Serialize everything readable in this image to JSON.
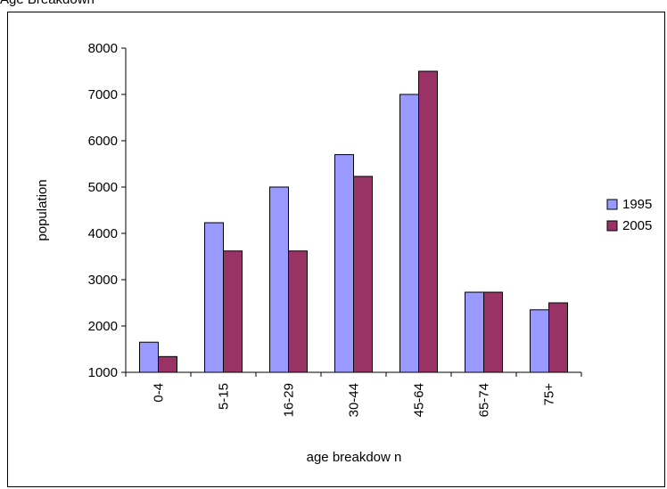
{
  "page_title": "Age Breakdown",
  "chart_data": {
    "type": "bar",
    "title": "",
    "xlabel": "age breakdow n",
    "ylabel": "population",
    "ylim": [
      1000,
      8000
    ],
    "yticks": [
      "1000",
      "2000",
      "3000",
      "4000",
      "5000",
      "6000",
      "7000",
      "8000"
    ],
    "categories": [
      "0-4",
      "5-15",
      "16-29",
      "30-44",
      "45-64",
      "65-74",
      "75+"
    ],
    "series": [
      {
        "name": "1995",
        "color": "#9999ff",
        "values": [
          1650,
          4230,
          5000,
          5700,
          7000,
          2730,
          2350
        ]
      },
      {
        "name": "2005",
        "color": "#993366",
        "values": [
          1340,
          3620,
          3620,
          5230,
          7500,
          2730,
          2500
        ]
      }
    ],
    "grid": false,
    "legend": "right"
  }
}
